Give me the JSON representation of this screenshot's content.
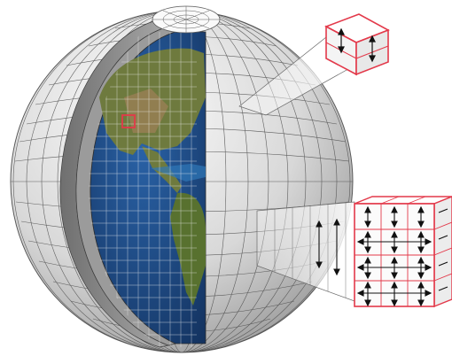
{
  "diagram": {
    "colors": {
      "background": "#ffffff",
      "shell_light": "#e8e8e8",
      "shell_mid": "#bdbdbd",
      "shell_dark": "#7d7d7d",
      "grid_line": "#3c3c3c",
      "ocean": "#1f4f8c",
      "ocean_deep": "#173a6b",
      "land": "#6e7a3e",
      "land_dry": "#9a7f55",
      "highlight": "#e3394a",
      "arrow": "#111111"
    },
    "icons": {
      "column_cell": "vertical-arrows-icon",
      "flux_cube": "flux-arrows-icon"
    }
  }
}
